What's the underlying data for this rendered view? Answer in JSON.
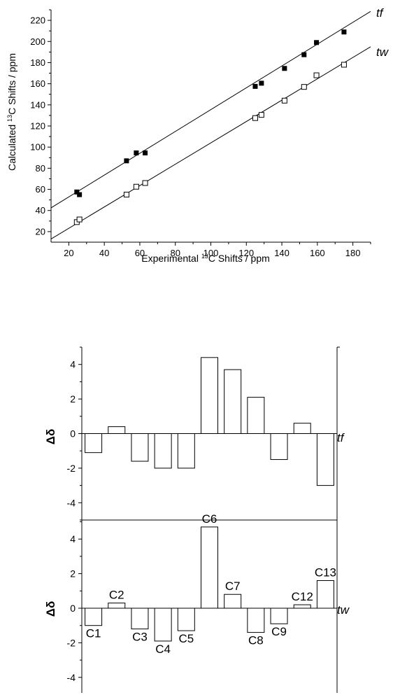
{
  "chart_data": [
    {
      "type": "scatter",
      "title": "",
      "xlabel": "Experimental ¹³C Shifts / ppm",
      "ylabel": "Calculated ¹³C Shifts / ppm",
      "xlim": [
        10,
        190
      ],
      "ylim": [
        10,
        230
      ],
      "xticks": [
        20,
        40,
        60,
        80,
        100,
        120,
        140,
        160,
        180
      ],
      "yticks": [
        20,
        40,
        60,
        80,
        100,
        120,
        140,
        160,
        180,
        200,
        220
      ],
      "grid": false,
      "series": [
        {
          "name": "tf",
          "marker": "filled-square",
          "x": [
            24.5,
            26,
            52.5,
            58,
            63,
            125,
            128.5,
            141.5,
            152.5,
            159.5,
            175
          ],
          "y": [
            57.5,
            55,
            87,
            94.5,
            94.5,
            157.5,
            160.5,
            174.5,
            187.5,
            199,
            209
          ],
          "fit": {
            "x": [
              10,
              190
            ],
            "y": [
              42.5,
              228.5
            ]
          }
        },
        {
          "name": "tw",
          "marker": "open-square",
          "x": [
            24.5,
            26,
            52.5,
            58,
            63,
            125,
            128.5,
            141.5,
            152.5,
            159.5,
            175
          ],
          "y": [
            29,
            31.5,
            55,
            62.5,
            66,
            127.5,
            130.5,
            144,
            157,
            168,
            178
          ],
          "fit": {
            "x": [
              10,
              190
            ],
            "y": [
              13,
              195
            ]
          }
        }
      ]
    },
    {
      "type": "bar",
      "title": "",
      "ylabel": "Δδ",
      "ylim": [
        -5,
        5
      ],
      "yticks": [
        -4,
        -2,
        0,
        2,
        4
      ],
      "categories": [
        "C1",
        "C2",
        "C3",
        "C4",
        "C5",
        "C6",
        "C7",
        "C8",
        "C9",
        "C12",
        "C13"
      ],
      "series": [
        {
          "name": "tf",
          "values": [
            -1.1,
            0.4,
            -1.6,
            -2.0,
            -2.0,
            4.4,
            3.7,
            2.1,
            -1.5,
            0.6,
            -3.0
          ]
        },
        {
          "name": "tw",
          "values": [
            -1.0,
            0.3,
            -1.2,
            -1.9,
            -1.3,
            4.7,
            0.8,
            -1.4,
            -0.9,
            0.2,
            1.6
          ]
        }
      ]
    }
  ]
}
